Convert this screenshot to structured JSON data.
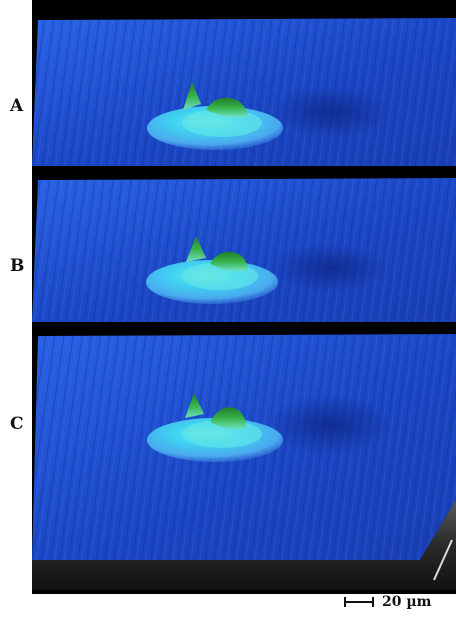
{
  "panels": [
    {
      "label": "A"
    },
    {
      "label": "B"
    },
    {
      "label": "C"
    }
  ],
  "scale_bar": {
    "label": "20 µm"
  },
  "colors": {
    "surface_base": "#1e4fd0",
    "surface_dark": "#0d2a8a",
    "peak_low": "#4fd8ff",
    "peak_high": "#2b9e3c",
    "background": "#000000"
  }
}
